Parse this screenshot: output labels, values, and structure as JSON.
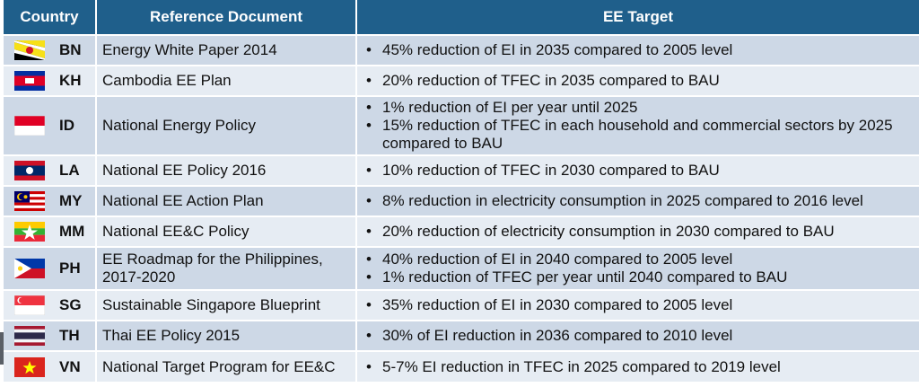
{
  "table": {
    "headers": {
      "country": "Country",
      "reference": "Reference Document",
      "target": "EE Target"
    },
    "rows": [
      {
        "code": "BN",
        "flag": "brunei-flag",
        "reference": "Energy White Paper 2014",
        "targets": [
          "45% reduction of EI in 2035 compared to 2005 level"
        ]
      },
      {
        "code": "KH",
        "flag": "cambodia-flag",
        "reference": "Cambodia EE Plan",
        "targets": [
          "20% reduction of TFEC in 2035 compared to BAU"
        ]
      },
      {
        "code": "ID",
        "flag": "indonesia-flag",
        "reference": "National Energy Policy",
        "targets": [
          "1% reduction of EI per year until 2025",
          "15% reduction of TFEC in each household and commercial sectors by 2025 compared to BAU"
        ]
      },
      {
        "code": "LA",
        "flag": "laos-flag",
        "reference": "National EE Policy 2016",
        "targets": [
          "10% reduction of TFEC in 2030 compared to BAU"
        ]
      },
      {
        "code": "MY",
        "flag": "malaysia-flag",
        "reference": "National EE Action Plan",
        "targets": [
          "8% reduction in electricity consumption in 2025 compared to 2016 level"
        ]
      },
      {
        "code": "MM",
        "flag": "myanmar-flag",
        "reference": "National EE&C Policy",
        "targets": [
          "20% reduction of electricity consumption in 2030 compared to BAU"
        ]
      },
      {
        "code": "PH",
        "flag": "philippines-flag",
        "reference": "EE Roadmap for the Philippines, 2017-2020",
        "targets": [
          "40% reduction of EI in 2040 compared to 2005 level",
          "1% reduction of TFEC per year until 2040 compared to BAU"
        ]
      },
      {
        "code": "SG",
        "flag": "singapore-flag",
        "reference": "Sustainable Singapore Blueprint",
        "targets": [
          "35% reduction of EI in 2030 compared to 2005 level"
        ]
      },
      {
        "code": "TH",
        "flag": "thailand-flag",
        "reference": "Thai EE Policy 2015",
        "targets": [
          "30% of EI reduction in 2036 compared to 2010 level"
        ]
      },
      {
        "code": "VN",
        "flag": "vietnam-flag",
        "reference": "National Target Program for EE&C",
        "targets": [
          "5-7% EI reduction in TFEC in 2025 compared to 2019 level"
        ]
      }
    ]
  },
  "colors": {
    "header_bg": "#1f5f8b",
    "row_dark": "#cdd8e6",
    "row_light": "#e6ecf3"
  }
}
